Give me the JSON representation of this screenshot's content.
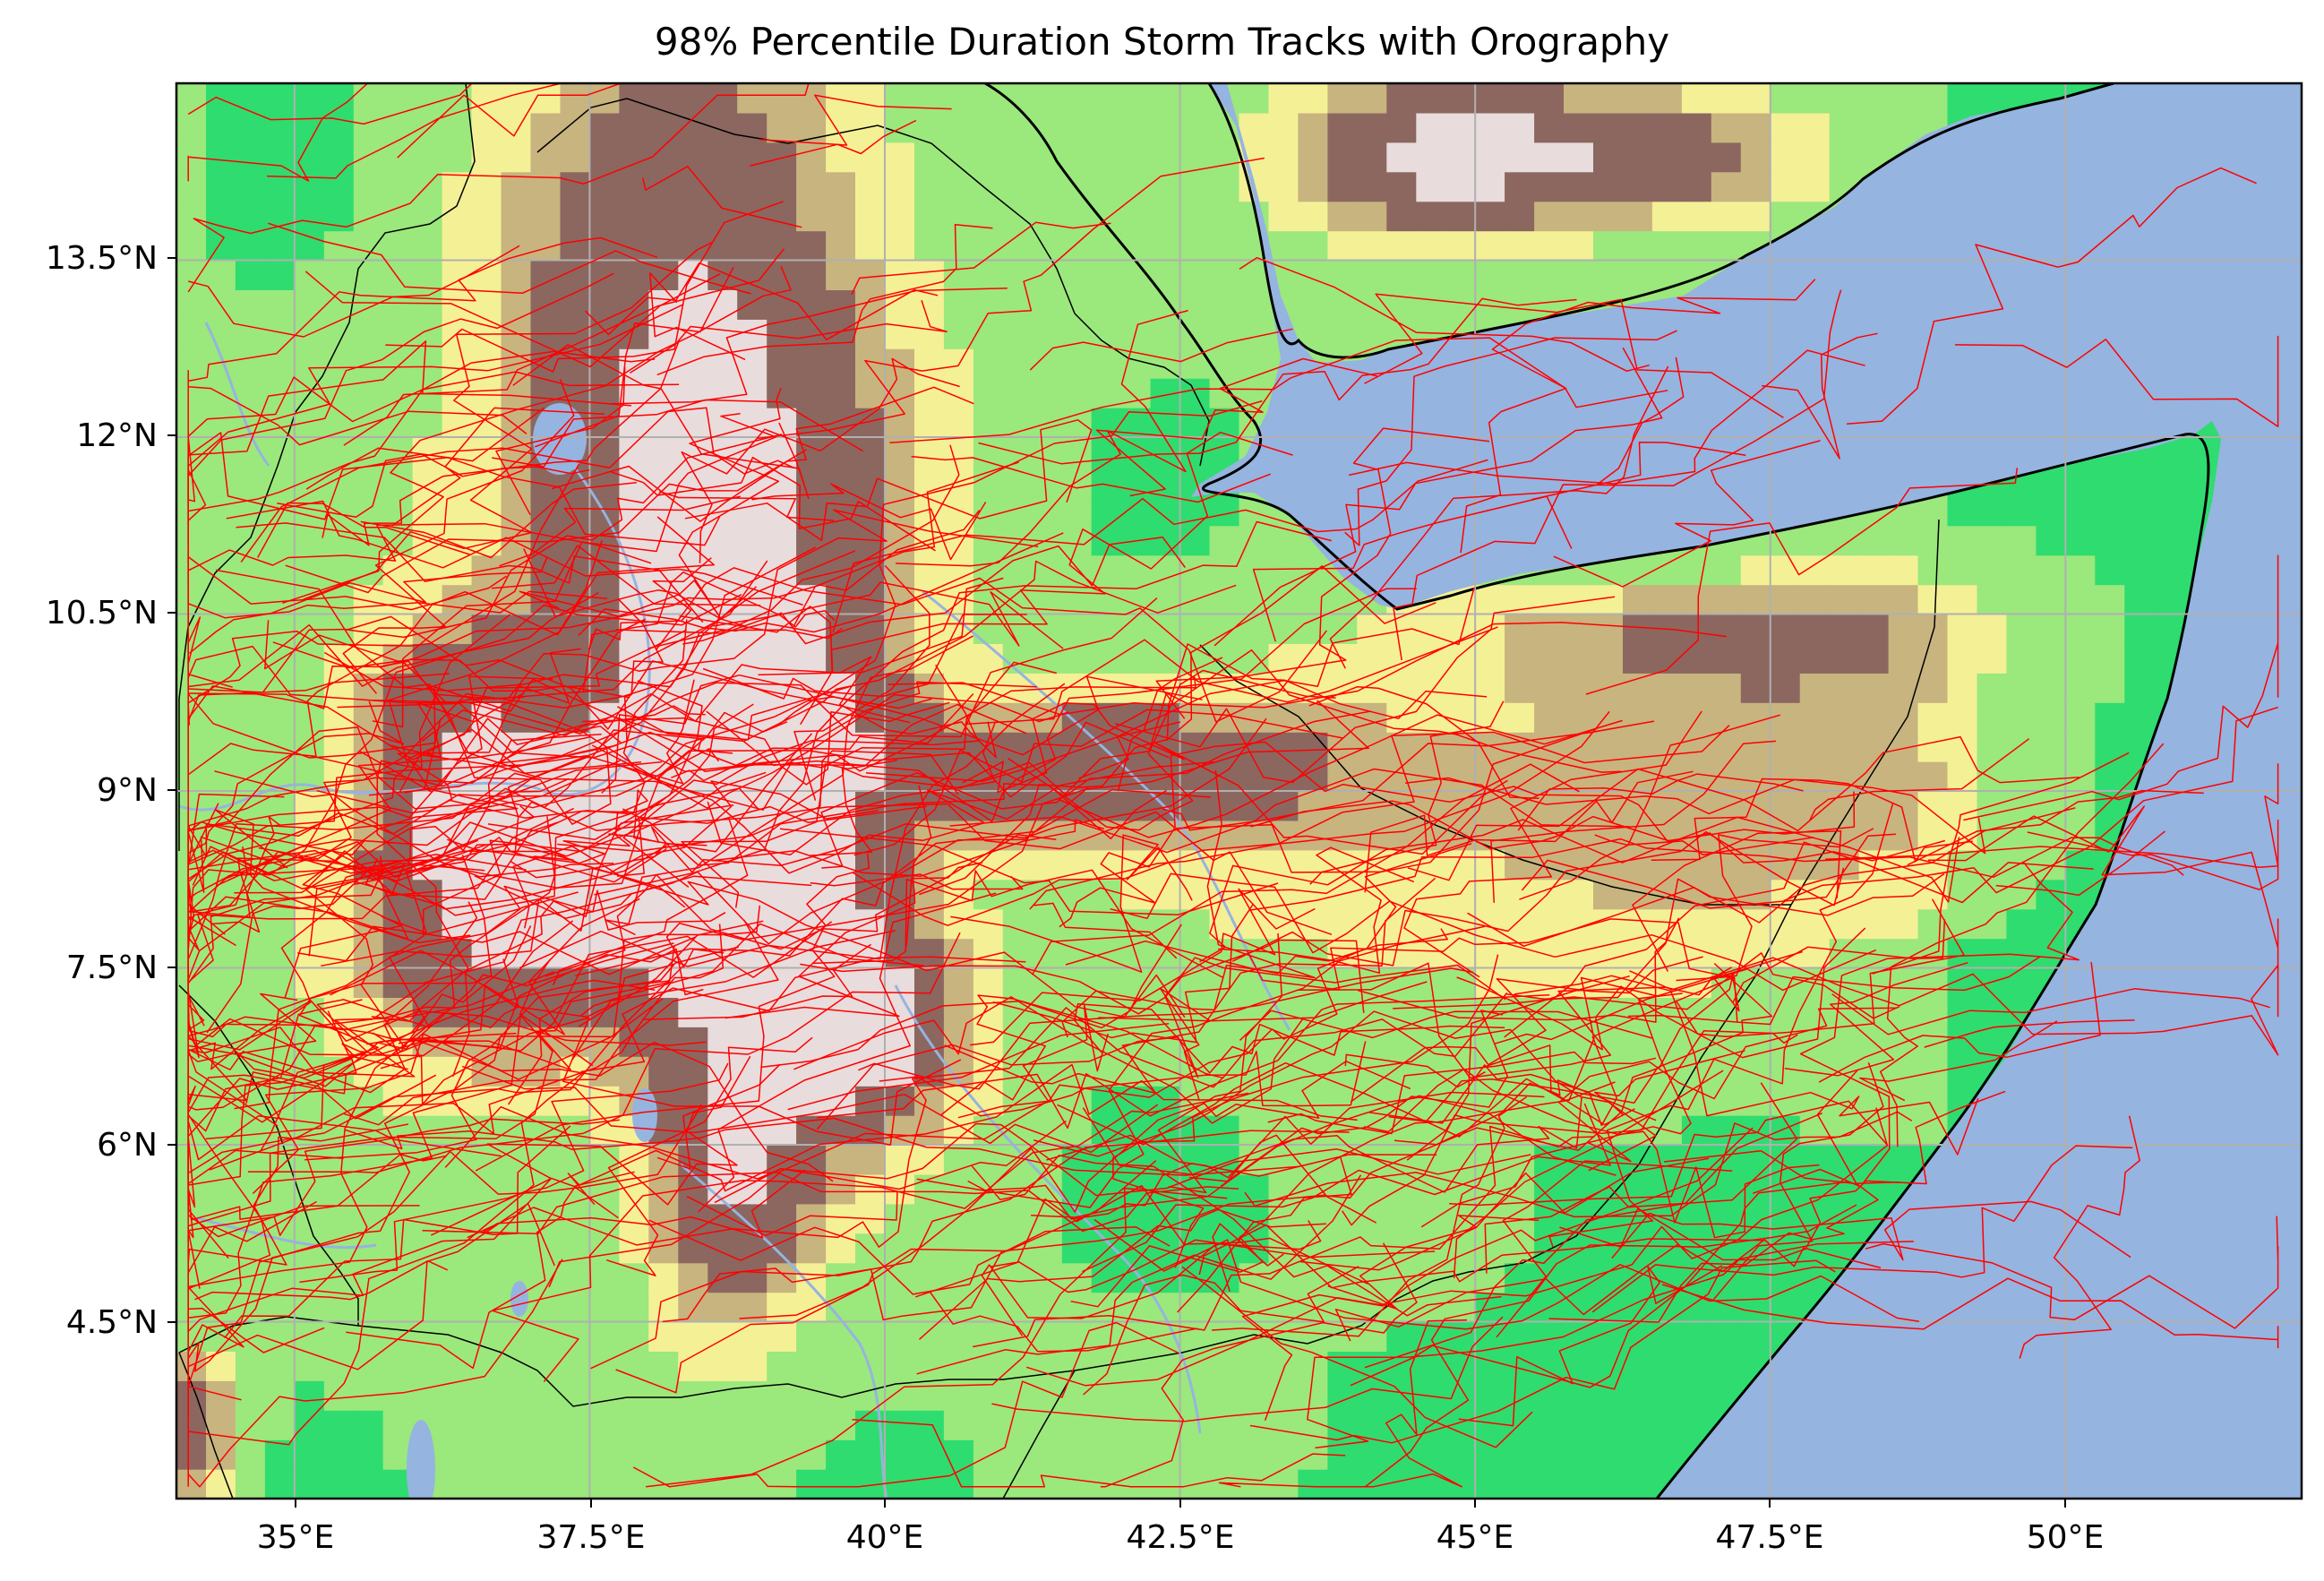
{
  "title": "98% Percentile Duration Storm Tracks with Orography",
  "lon_ticks": [
    "35°E",
    "37.5°E",
    "40°E",
    "42.5°E",
    "45°E",
    "47.5°E",
    "50°E"
  ],
  "lat_ticks": [
    "13.5°N",
    "12°N",
    "10.5°N",
    "9°N",
    "7.5°N",
    "6°N",
    "4.5°N"
  ],
  "colors": {
    "ocean": "#95b4e0",
    "lowland": "#2fdc6f",
    "plain": "#9be87c",
    "plateau": "#f4f096",
    "upland": "#c7b47f",
    "highland": "#8b6760",
    "peak": "#e8dcdc",
    "track": "#ff0000",
    "river": "#95b4e0",
    "gridline": "#b0b0b0",
    "frame": "#000000"
  },
  "map_data": {
    "type": "storm-track-map",
    "extent": {
      "lon": [
        34,
        52
      ],
      "lat": [
        3,
        15
      ]
    },
    "track_color": "red",
    "layers": [
      "orography",
      "ocean",
      "rivers",
      "lakes",
      "coastline",
      "borders",
      "gridlines",
      "storm-tracks"
    ]
  }
}
